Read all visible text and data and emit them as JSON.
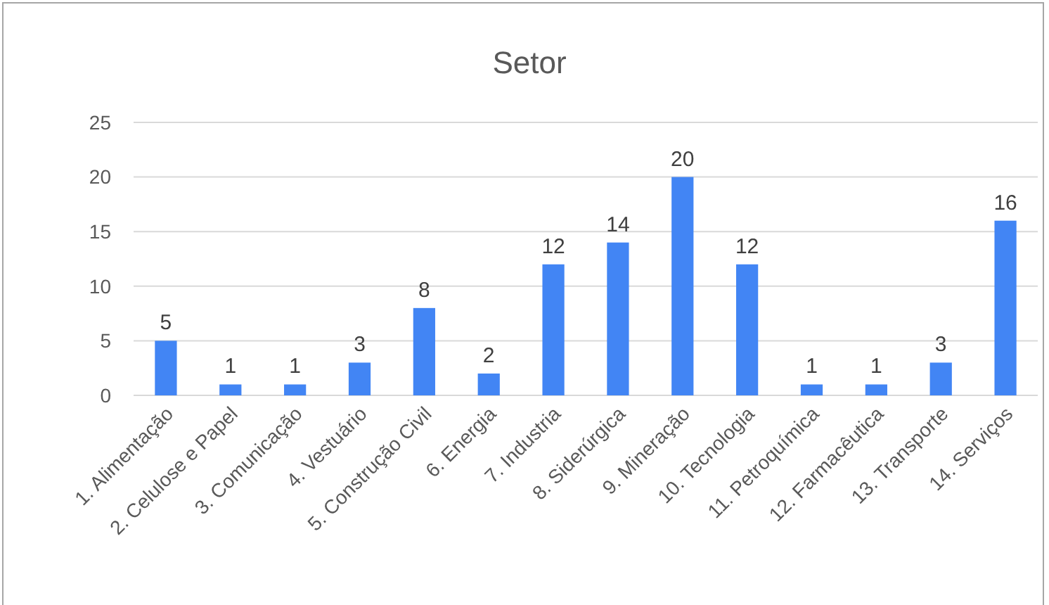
{
  "chart_data": {
    "type": "bar",
    "title": "Setor",
    "categories": [
      "1. Alimentação",
      "2. Celulose e Papel",
      "3. Comunicação",
      "4. Vestuário",
      "5. Construção Civil",
      "6. Energia",
      "7. Industria",
      "8. Siderúrgica",
      "9. Mineração",
      "10. Tecnologia",
      "11. Petroquímica",
      "12. Farmacêutica",
      "13. Transporte",
      "14. Serviços"
    ],
    "values": [
      5,
      1,
      1,
      3,
      8,
      2,
      12,
      14,
      20,
      12,
      1,
      1,
      3,
      16
    ],
    "color": "#4285f4",
    "ylim": [
      0,
      25
    ],
    "yticks": [
      0,
      5,
      10,
      15,
      20,
      25
    ],
    "grid": "y",
    "data_labels": true
  }
}
